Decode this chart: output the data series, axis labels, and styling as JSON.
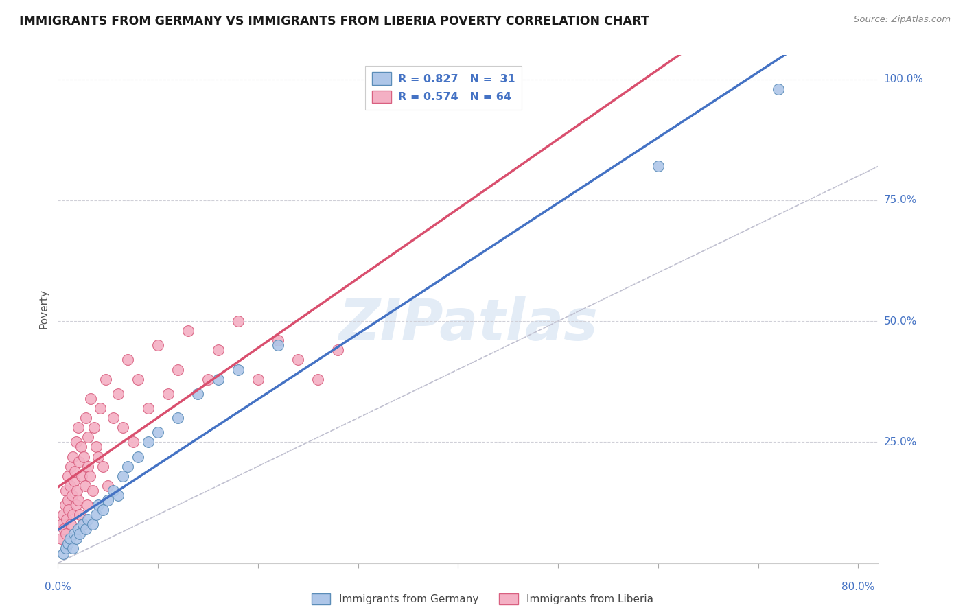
{
  "title": "IMMIGRANTS FROM GERMANY VS IMMIGRANTS FROM LIBERIA POVERTY CORRELATION CHART",
  "source": "Source: ZipAtlas.com",
  "ylabel": "Poverty",
  "ytick_labels": [
    "0%",
    "25.0%",
    "50.0%",
    "75.0%",
    "100.0%"
  ],
  "ytick_values": [
    0.0,
    0.25,
    0.5,
    0.75,
    1.0
  ],
  "xtick_positions": [
    0.0,
    0.1,
    0.2,
    0.3,
    0.4,
    0.5,
    0.6,
    0.7,
    0.8
  ],
  "xlim": [
    0.0,
    0.82
  ],
  "ylim": [
    0.0,
    1.05
  ],
  "germany_color": "#aec6e8",
  "germany_edge": "#5b8db8",
  "liberia_color": "#f4b0c4",
  "liberia_edge": "#d96080",
  "germany_line_color": "#4472c4",
  "liberia_line_color": "#d94f6e",
  "diagonal_color": "#c0c0d0",
  "background": "#ffffff",
  "watermark_text": "ZIPatlas",
  "germany_x": [
    0.005,
    0.008,
    0.01,
    0.012,
    0.015,
    0.016,
    0.018,
    0.02,
    0.022,
    0.025,
    0.028,
    0.03,
    0.035,
    0.038,
    0.04,
    0.045,
    0.05,
    0.055,
    0.06,
    0.065,
    0.07,
    0.08,
    0.09,
    0.1,
    0.12,
    0.14,
    0.16,
    0.18,
    0.22,
    0.6,
    0.72
  ],
  "germany_y": [
    0.02,
    0.03,
    0.04,
    0.05,
    0.03,
    0.06,
    0.05,
    0.07,
    0.06,
    0.08,
    0.07,
    0.09,
    0.08,
    0.1,
    0.12,
    0.11,
    0.13,
    0.15,
    0.14,
    0.18,
    0.2,
    0.22,
    0.25,
    0.27,
    0.3,
    0.35,
    0.38,
    0.4,
    0.45,
    0.82,
    0.98
  ],
  "liberia_x": [
    0.003,
    0.004,
    0.005,
    0.006,
    0.007,
    0.008,
    0.008,
    0.009,
    0.01,
    0.01,
    0.011,
    0.012,
    0.013,
    0.013,
    0.014,
    0.015,
    0.015,
    0.016,
    0.017,
    0.018,
    0.018,
    0.019,
    0.02,
    0.02,
    0.021,
    0.022,
    0.023,
    0.024,
    0.025,
    0.026,
    0.027,
    0.028,
    0.029,
    0.03,
    0.03,
    0.032,
    0.033,
    0.035,
    0.036,
    0.038,
    0.04,
    0.042,
    0.045,
    0.048,
    0.05,
    0.055,
    0.06,
    0.065,
    0.07,
    0.075,
    0.08,
    0.09,
    0.1,
    0.11,
    0.12,
    0.13,
    0.15,
    0.16,
    0.18,
    0.2,
    0.22,
    0.24,
    0.26,
    0.28
  ],
  "liberia_y": [
    0.05,
    0.08,
    0.1,
    0.07,
    0.12,
    0.06,
    0.15,
    0.09,
    0.13,
    0.18,
    0.11,
    0.16,
    0.08,
    0.2,
    0.14,
    0.1,
    0.22,
    0.17,
    0.19,
    0.12,
    0.25,
    0.15,
    0.13,
    0.28,
    0.21,
    0.1,
    0.24,
    0.18,
    0.08,
    0.22,
    0.16,
    0.3,
    0.12,
    0.26,
    0.2,
    0.18,
    0.34,
    0.15,
    0.28,
    0.24,
    0.22,
    0.32,
    0.2,
    0.38,
    0.16,
    0.3,
    0.35,
    0.28,
    0.42,
    0.25,
    0.38,
    0.32,
    0.45,
    0.35,
    0.4,
    0.48,
    0.38,
    0.44,
    0.5,
    0.38,
    0.46,
    0.42,
    0.38,
    0.44
  ]
}
